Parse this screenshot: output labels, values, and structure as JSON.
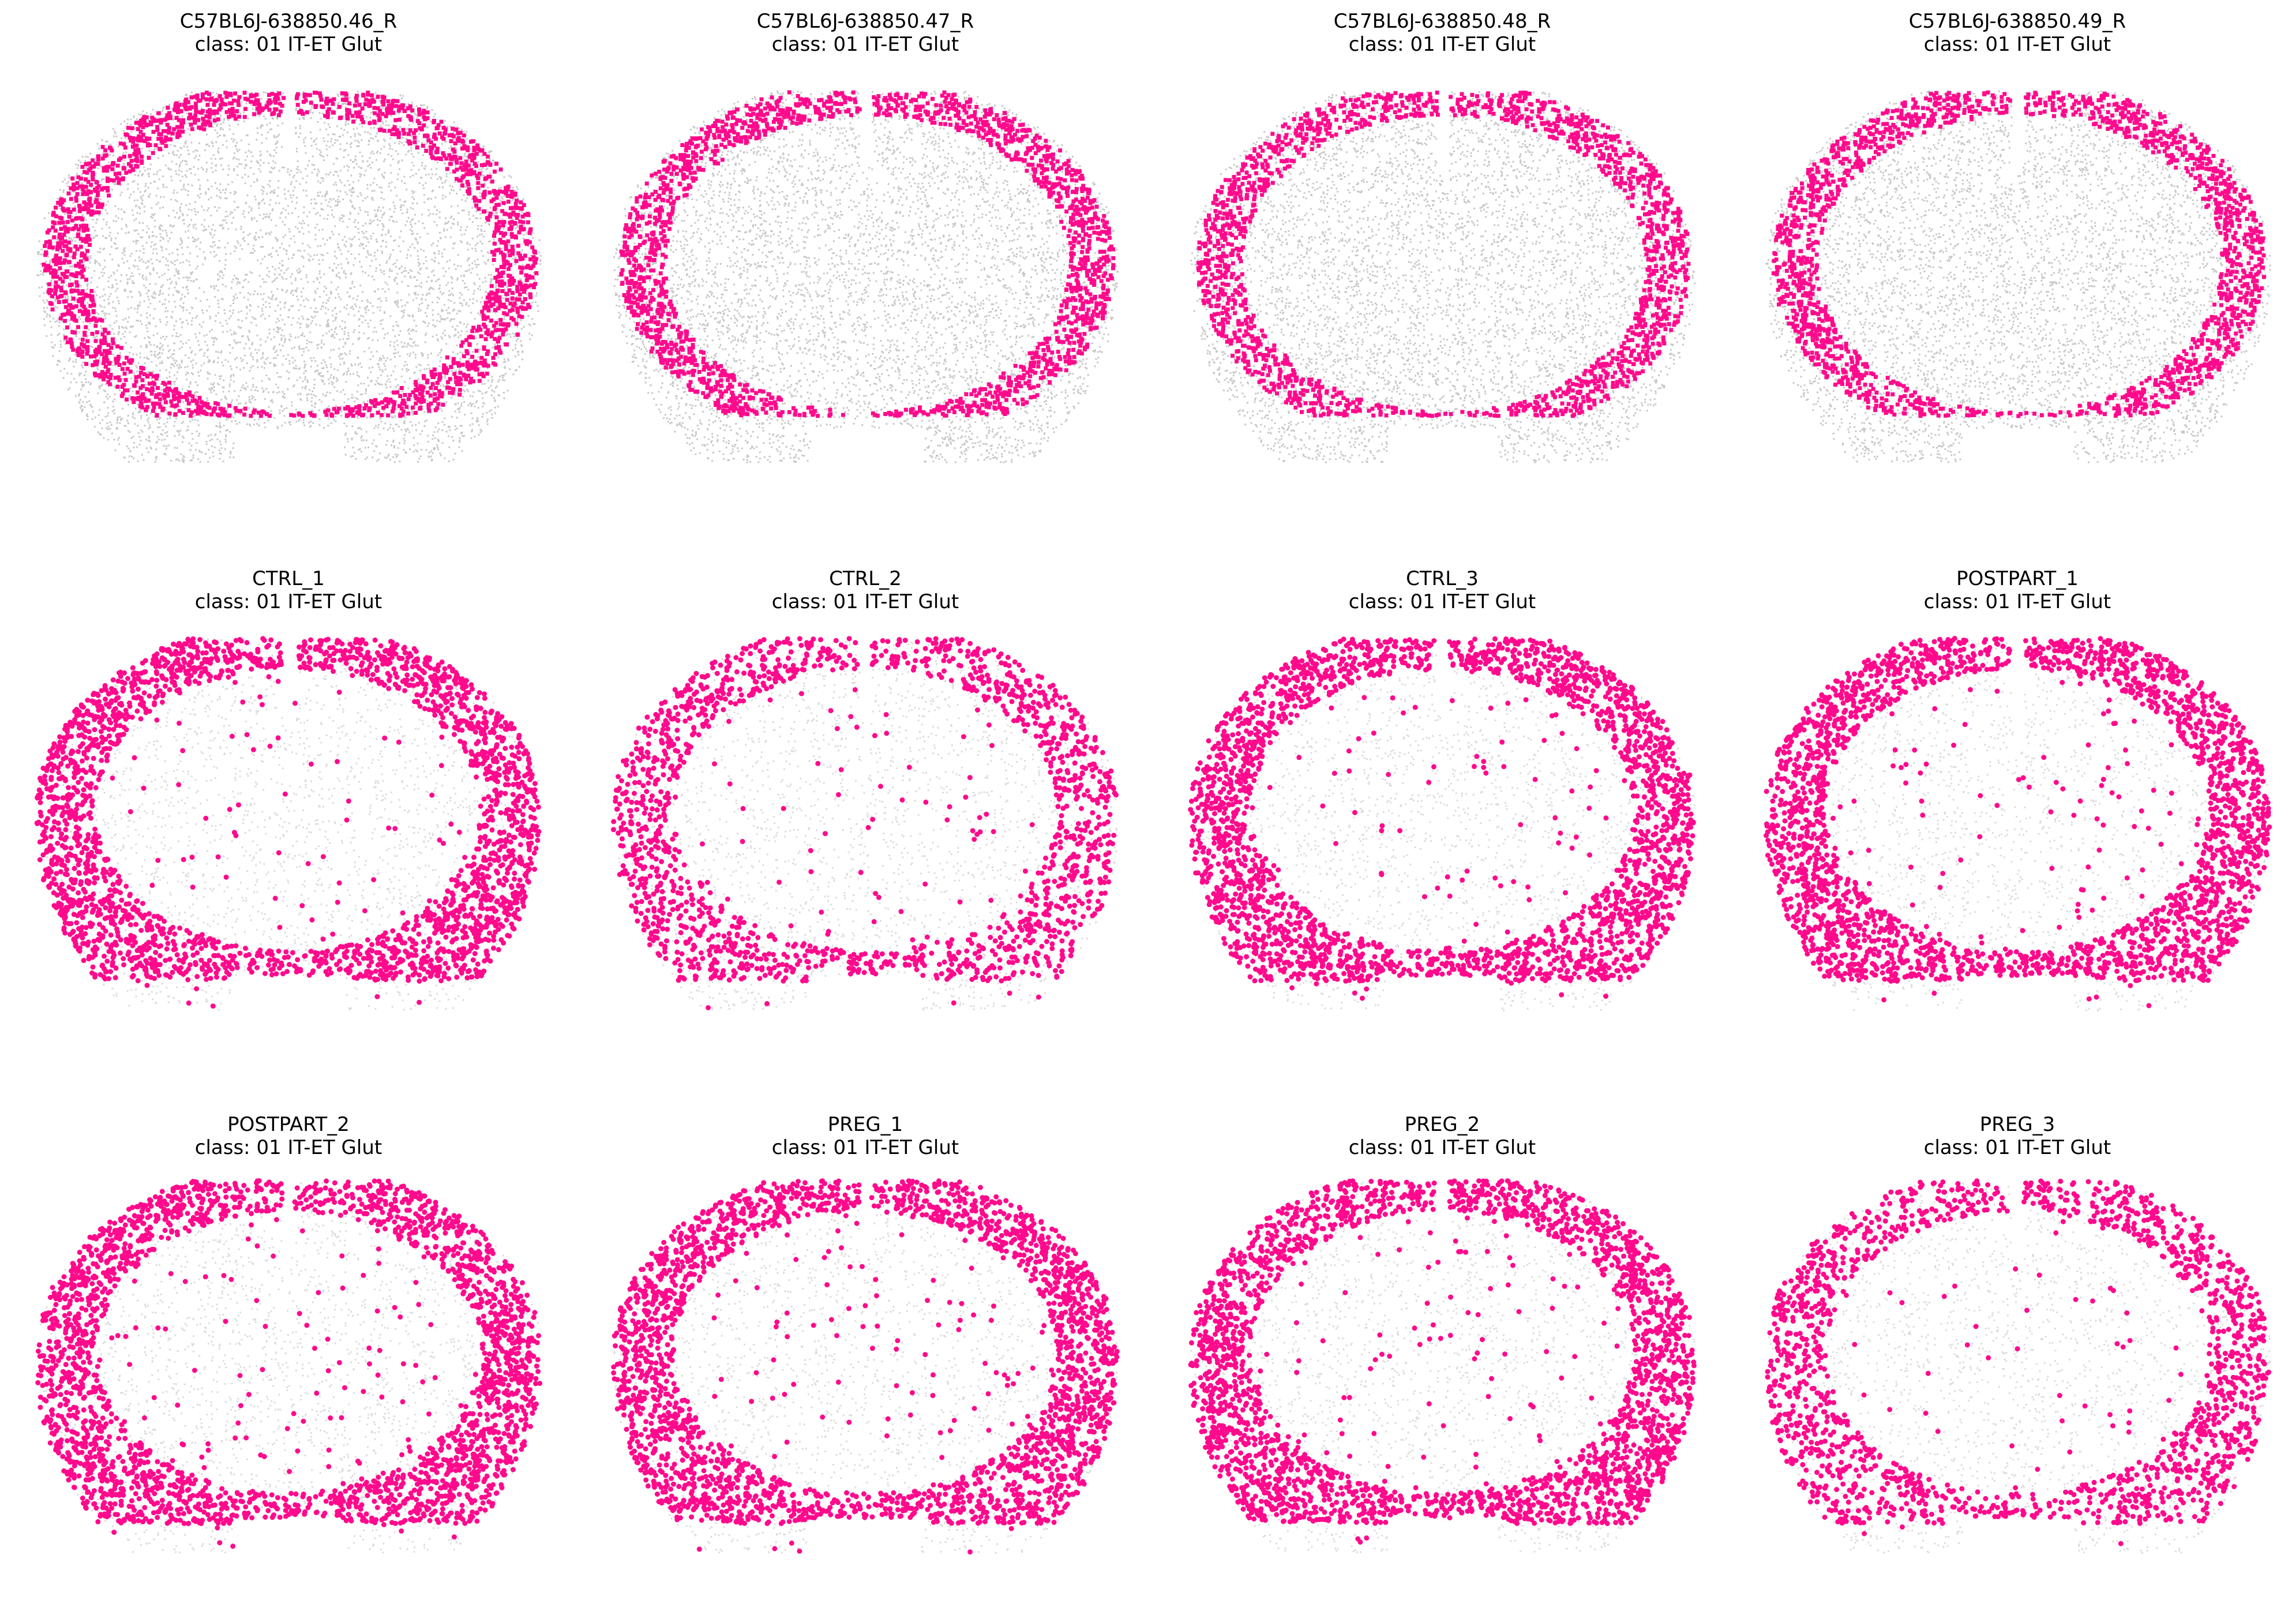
{
  "figure": {
    "colors": {
      "highlight": "#ff0a8c",
      "background_cells": "#9a9a9a"
    }
  },
  "chart_data": [
    {
      "type": "scatter",
      "title": "C57BL6J-638850.46_R",
      "subtitle": "class: 01 IT-ET Glut",
      "style": "dense"
    },
    {
      "type": "scatter",
      "title": "C57BL6J-638850.47_R",
      "subtitle": "class: 01 IT-ET Glut",
      "style": "dense"
    },
    {
      "type": "scatter",
      "title": "C57BL6J-638850.48_R",
      "subtitle": "class: 01 IT-ET Glut",
      "style": "dense"
    },
    {
      "type": "scatter",
      "title": "C57BL6J-638850.49_R",
      "subtitle": "class: 01 IT-ET Glut",
      "style": "dense"
    },
    {
      "type": "scatter",
      "title": "CTRL_1",
      "subtitle": "class: 01 IT-ET Glut",
      "style": "sparse"
    },
    {
      "type": "scatter",
      "title": "CTRL_2",
      "subtitle": "class: 01 IT-ET Glut",
      "style": "sparse"
    },
    {
      "type": "scatter",
      "title": "CTRL_3",
      "subtitle": "class: 01 IT-ET Glut",
      "style": "sparse"
    },
    {
      "type": "scatter",
      "title": "POSTPART_1",
      "subtitle": "class: 01 IT-ET Glut",
      "style": "sparse"
    },
    {
      "type": "scatter",
      "title": "POSTPART_2",
      "subtitle": "class: 01 IT-ET Glut",
      "style": "sparse"
    },
    {
      "type": "scatter",
      "title": "PREG_1",
      "subtitle": "class: 01 IT-ET Glut",
      "style": "sparse"
    },
    {
      "type": "scatter",
      "title": "PREG_2",
      "subtitle": "class: 01 IT-ET Glut",
      "style": "sparse"
    },
    {
      "type": "scatter",
      "title": "PREG_3",
      "subtitle": "class: 01 IT-ET Glut",
      "style": "sparse"
    }
  ]
}
